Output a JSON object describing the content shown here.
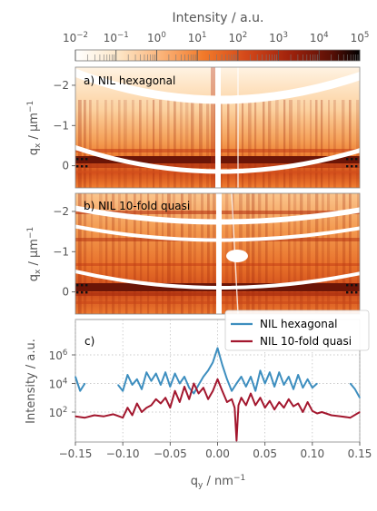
{
  "colorbar": {
    "label": "Intensity / a.u.",
    "exponents": [
      -2,
      -1,
      0,
      1,
      2,
      3,
      4,
      5
    ],
    "tick_labels": [
      "10^-2",
      "10^-1",
      "10^0",
      "10^1",
      "10^2",
      "10^3",
      "10^4",
      "10^5"
    ],
    "range": [
      0.01,
      100000
    ],
    "scale": "log",
    "colormap": [
      "#ffffff",
      "#fde7c8",
      "#fbb47a",
      "#f27a2a",
      "#d4491a",
      "#a2230c",
      "#5a1006",
      "#000000"
    ]
  },
  "panels": [
    {
      "label": "a) NIL hexagonal",
      "type": "heatmap",
      "ylabel": "q_x / µm⁻¹",
      "yticks": [
        -2,
        -1,
        0
      ],
      "ylim": [
        -2.45,
        0.55
      ],
      "xlim": [
        -0.15,
        0.15
      ]
    },
    {
      "label": "b) NIL 10-fold quasi",
      "type": "heatmap",
      "ylabel": "q_x / µm⁻¹",
      "yticks": [
        -2,
        -1,
        0
      ],
      "ylim": [
        -2.45,
        0.55
      ],
      "xlim": [
        -0.15,
        0.15
      ]
    }
  ],
  "chart_data": {
    "type": "line",
    "panel_label": "c)",
    "xlabel": "q_y / nm⁻¹",
    "ylabel": "Intensity / a.u.",
    "xlim": [
      -0.15,
      0.15
    ],
    "ylim": [
      0.8,
      300000000
    ],
    "yscale": "log",
    "xticks": [
      -0.15,
      -0.1,
      -0.05,
      0.0,
      0.05,
      0.1,
      0.15
    ],
    "xtick_labels": [
      "−0.15",
      "−0.10",
      "−0.05",
      "0.00",
      "0.05",
      "0.10",
      "0.15"
    ],
    "ytick_exponents": [
      2,
      4,
      6
    ],
    "ytick_labels": [
      "10^2",
      "10^4",
      "10^6"
    ],
    "grid": true,
    "legend_position": "top-right",
    "series": [
      {
        "name": "NIL hexagonal",
        "color": "#3d8ebf",
        "x": [
          -0.15,
          -0.145,
          -0.14,
          -0.105,
          -0.1,
          -0.095,
          -0.09,
          -0.085,
          -0.08,
          -0.075,
          -0.07,
          -0.065,
          -0.06,
          -0.055,
          -0.05,
          -0.045,
          -0.04,
          -0.035,
          -0.03,
          -0.025,
          -0.02,
          -0.015,
          -0.01,
          -0.005,
          0.0,
          0.005,
          0.01,
          0.015,
          0.02,
          0.025,
          0.03,
          0.035,
          0.04,
          0.045,
          0.05,
          0.055,
          0.06,
          0.065,
          0.07,
          0.075,
          0.08,
          0.085,
          0.09,
          0.095,
          0.1,
          0.105,
          0.14,
          0.145,
          0.15
        ],
        "y": [
          30000,
          3000,
          10000,
          8000,
          3000,
          40000,
          8000,
          20000,
          4000,
          60000,
          15000,
          50000,
          8000,
          60000,
          6000,
          50000,
          10000,
          30000,
          5000,
          2000,
          8000,
          30000,
          80000,
          300000,
          3000000,
          200000,
          20000,
          3000,
          10000,
          30000,
          6000,
          30000,
          3000,
          80000,
          10000,
          60000,
          6000,
          60000,
          8000,
          30000,
          4000,
          40000,
          5000,
          20000,
          5000,
          10000,
          10000,
          4000,
          1000
        ]
      },
      {
        "name": "NIL 10-fold quasi",
        "color": "#a3172e",
        "x": [
          -0.15,
          -0.14,
          -0.13,
          -0.12,
          -0.11,
          -0.1,
          -0.095,
          -0.09,
          -0.085,
          -0.08,
          -0.075,
          -0.07,
          -0.065,
          -0.06,
          -0.055,
          -0.05,
          -0.045,
          -0.04,
          -0.035,
          -0.03,
          -0.025,
          -0.02,
          -0.015,
          -0.01,
          -0.005,
          0.0,
          0.005,
          0.01,
          0.015,
          0.018,
          0.02,
          0.022,
          0.025,
          0.03,
          0.035,
          0.04,
          0.045,
          0.05,
          0.055,
          0.06,
          0.065,
          0.07,
          0.075,
          0.08,
          0.085,
          0.09,
          0.095,
          0.1,
          0.105,
          0.11,
          0.12,
          0.13,
          0.14,
          0.15
        ],
        "y": [
          50,
          40,
          60,
          50,
          70,
          40,
          200,
          60,
          400,
          100,
          200,
          300,
          800,
          400,
          1000,
          200,
          3000,
          500,
          6000,
          800,
          10000,
          2000,
          5000,
          800,
          3000,
          20000,
          3000,
          500,
          800,
          200,
          1,
          300,
          1000,
          300,
          2000,
          300,
          1000,
          200,
          600,
          150,
          500,
          200,
          800,
          250,
          400,
          100,
          500,
          120,
          80,
          100,
          60,
          50,
          40,
          100
        ]
      }
    ]
  }
}
